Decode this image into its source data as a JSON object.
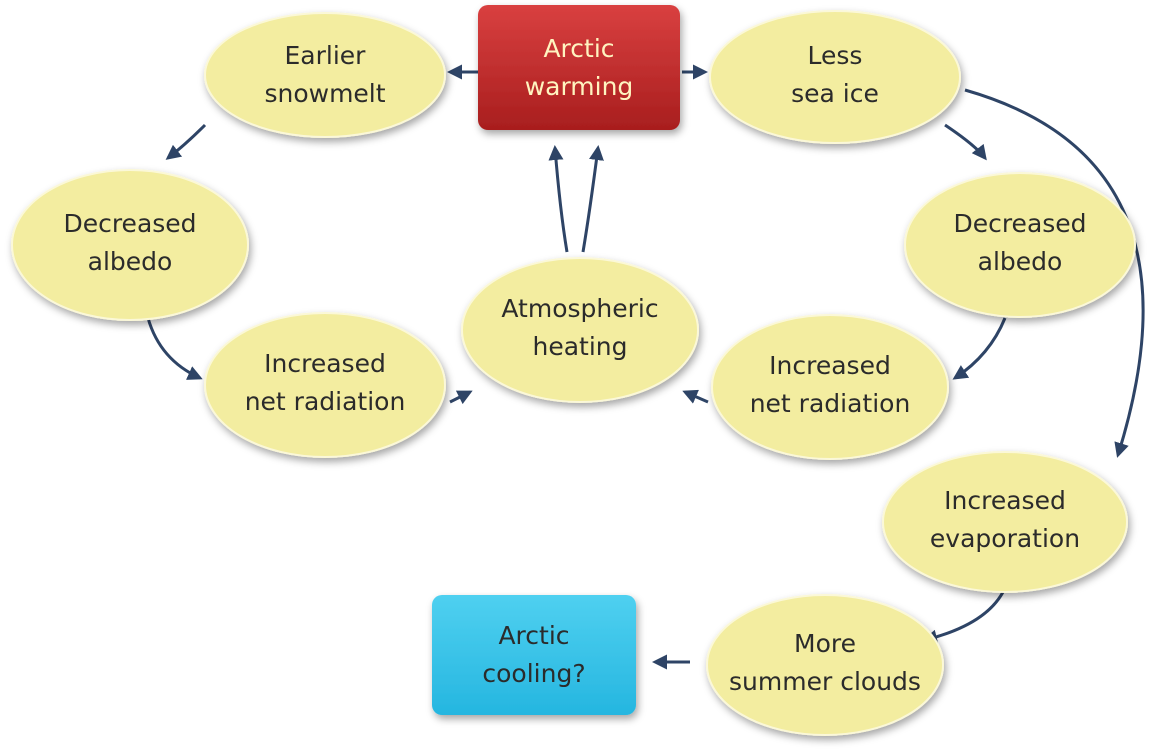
{
  "nodes": [
    {
      "lines": [
        "Arctic",
        "warming"
      ]
    },
    {
      "lines": [
        "Earlier",
        "snowmelt"
      ]
    },
    {
      "lines": [
        "Less",
        "sea ice"
      ]
    },
    {
      "lines": [
        "Decreased",
        "albedo"
      ]
    },
    {
      "lines": [
        "Decreased",
        "albedo"
      ]
    },
    {
      "lines": [
        "Atmospheric",
        "heating"
      ]
    },
    {
      "lines": [
        "Increased",
        "net radiation"
      ]
    },
    {
      "lines": [
        "Increased",
        "net radiation"
      ]
    },
    {
      "lines": [
        "Increased",
        "evaporation"
      ]
    },
    {
      "lines": [
        "More",
        "summer clouds"
      ]
    },
    {
      "lines": [
        "Arctic",
        "cooling?"
      ]
    }
  ]
}
